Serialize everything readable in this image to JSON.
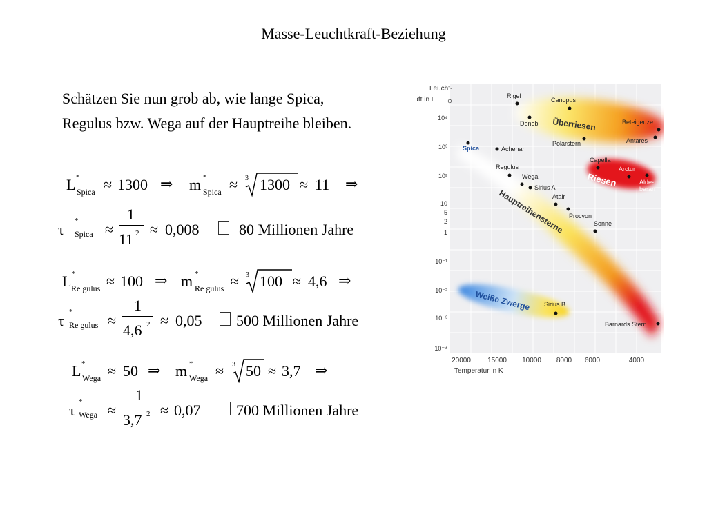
{
  "slide": {
    "title": "Masse-Leuchtkraft-Beziehung",
    "intro_line1": "Schätzen Sie nun grob ab, wie lange Spica,",
    "intro_line2": "Regulus bzw. Wega auf der Hauptreihe bleiben."
  },
  "equations": {
    "spica": {
      "star": "Spica",
      "L_value": "1300",
      "cube_arg": "1300",
      "m_value": "11",
      "tau_den": "11",
      "tau_den_exp": "2",
      "tau_value": "0,008",
      "result": "80 Millionen Jahre"
    },
    "regulus": {
      "star": "Re gulus",
      "L_value": "100",
      "cube_arg": "100",
      "m_value": "4,6",
      "tau_den": "4,6",
      "tau_den_exp": "2",
      "tau_value": "0,05",
      "result": "500 Millionen Jahre"
    },
    "wega": {
      "star": "Wega",
      "L_value": "50",
      "cube_arg": "50",
      "m_value": "3,7",
      "tau_den": "3,7",
      "tau_den_exp": "2",
      "tau_value": "0,07",
      "result": "700 Millionen Jahre"
    },
    "symbols": {
      "L": "L",
      "m": "m",
      "tau": "τ",
      "star_mark": "*",
      "approx": "≈",
      "implies": "⇒",
      "one": "1",
      "root_index": "3",
      "unknown_glyph": ""
    }
  },
  "hrd": {
    "yaxis_title_line1": "Leucht-",
    "yaxis_title_line2": "kraft in L",
    "sun_symbol": "⊙",
    "xaxis_title": "Temperatur in K",
    "y_ticks": [
      "10⁴",
      "10³",
      "10²",
      "10",
      "5",
      "2",
      "1",
      "10⁻¹",
      "10⁻²",
      "10⁻³",
      "10⁻⁴"
    ],
    "x_ticks": [
      "20000",
      "15000",
      "10000",
      "8000",
      "6000",
      "4000"
    ],
    "regions": {
      "supergiants": "Überriesen",
      "giants": "Riesen",
      "main_sequence": "Hauptreihensterne",
      "white_dwarfs": "Weiße Zwerge"
    },
    "stars": {
      "rigel": "Rigel",
      "canopus": "Canopus",
      "deneb": "Deneb",
      "betelgeuze": "Beteigeuze",
      "antares": "Antares",
      "polarstern": "Polarstern",
      "spica": "Spica",
      "achenar": "Achenar",
      "capella": "Capella",
      "arctur": "Arctur",
      "aldebaran1": "Alde-",
      "aldebaran2": "baran",
      "regulus": "Regulus",
      "wega": "Wega",
      "sirius_a": "Sirius A",
      "atair": "Atair",
      "procyon": "Procyon",
      "sonne": "Sonne",
      "sirius_b": "Sirius B",
      "barnards": "Barnards Stern"
    },
    "colors": {
      "blue": "#2a72d8",
      "yellow": "#f7d21e",
      "orange": "#f39a1f",
      "red": "#e3151b"
    }
  }
}
